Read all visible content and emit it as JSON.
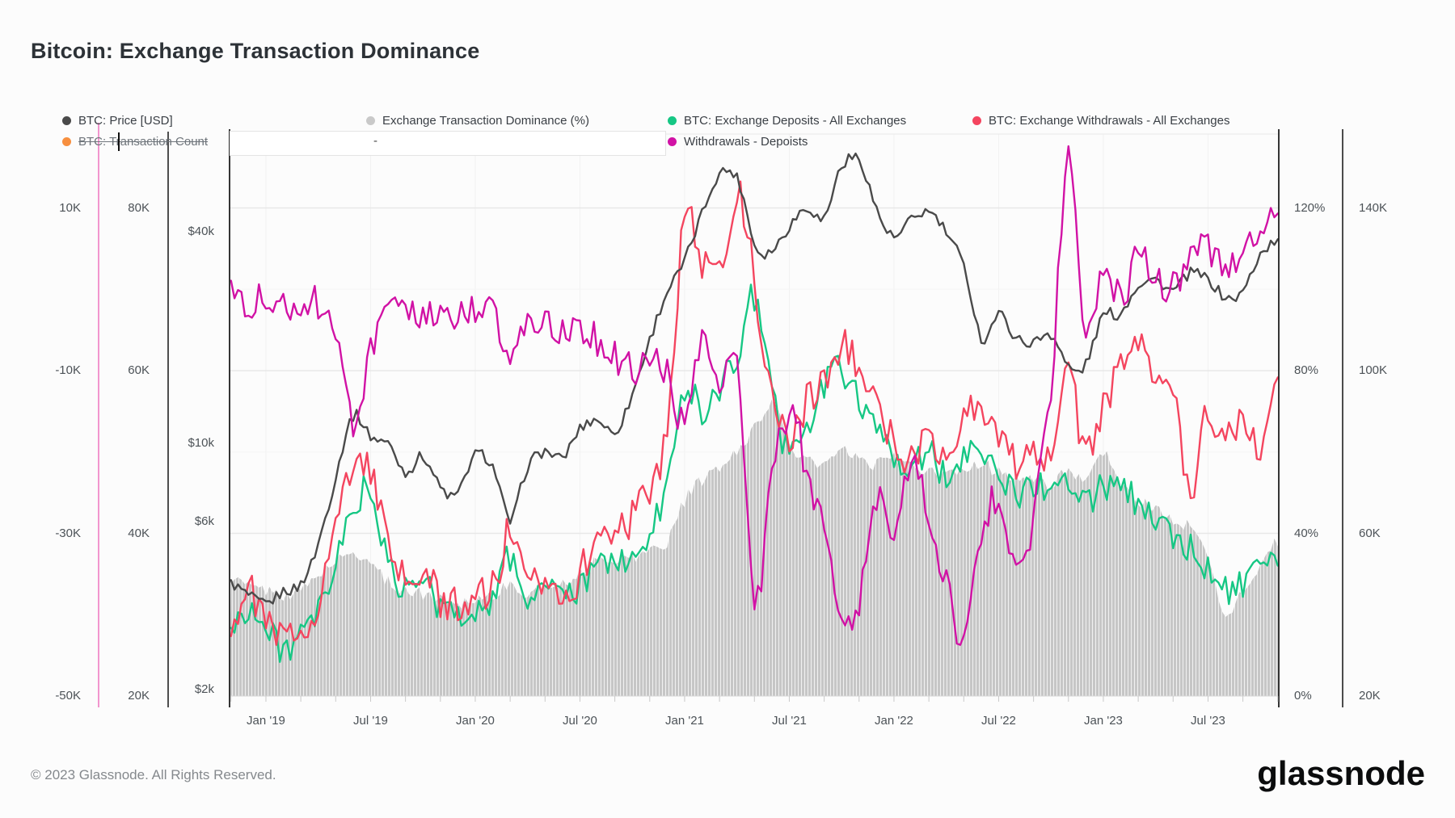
{
  "header": {
    "title": "Bitcoin: Exchange Transaction Dominance"
  },
  "legend": {
    "row1": [
      {
        "id": "btc-price",
        "label": "BTC: Price [USD]",
        "color": "#4a4a4a",
        "enabled": true
      },
      {
        "id": "dominance",
        "label": "Exchange Transaction Dominance (%)",
        "color": "#c9c9c9",
        "enabled": true
      },
      {
        "id": "deposits",
        "label": "BTC: Exchange Deposits - All Exchanges",
        "color": "#16c784",
        "enabled": true
      },
      {
        "id": "withdrawals",
        "label": "BTC: Exchange Withdrawals - All Exchanges",
        "color": "#f4455f",
        "enabled": true
      }
    ],
    "row2": [
      {
        "id": "tx-count",
        "label": "BTC: Transaction Count",
        "color": "#f78f3f",
        "enabled": false
      },
      {
        "id": "net-flow",
        "label": "Withdrawals - Depoists",
        "color": "#d112a5",
        "enabled": true
      }
    ],
    "empty_slot": "-"
  },
  "footer": {
    "copyright": "© 2023 Glassnode. All Rights Reserved.",
    "brand": "glassnode"
  },
  "chart_data": {
    "type": "line",
    "legend_position": "top",
    "grid": "horizontal",
    "x_months": [
      "2018-11",
      "2018-12",
      "2019-01",
      "2019-02",
      "2019-03",
      "2019-04",
      "2019-05",
      "2019-06",
      "2019-07",
      "2019-08",
      "2019-09",
      "2019-10",
      "2019-11",
      "2019-12",
      "2020-01",
      "2020-02",
      "2020-03",
      "2020-04",
      "2020-05",
      "2020-06",
      "2020-07",
      "2020-08",
      "2020-09",
      "2020-10",
      "2020-11",
      "2020-12",
      "2021-01",
      "2021-02",
      "2021-03",
      "2021-04",
      "2021-05",
      "2021-06",
      "2021-07",
      "2021-08",
      "2021-09",
      "2021-10",
      "2021-11",
      "2021-12",
      "2022-01",
      "2022-02",
      "2022-03",
      "2022-04",
      "2022-05",
      "2022-06",
      "2022-07",
      "2022-08",
      "2022-09",
      "2022-10",
      "2022-11",
      "2022-12",
      "2023-01",
      "2023-02",
      "2023-03",
      "2023-04",
      "2023-05",
      "2023-06",
      "2023-07",
      "2023-08",
      "2023-09",
      "2023-10",
      "2023-11"
    ],
    "x_tick_labels": [
      "Jan '19",
      "Jul '19",
      "Jan '20",
      "Jul '20",
      "Jan '21",
      "Jul '21",
      "Jan '22",
      "Jul '22",
      "Jan '23",
      "Jul '23"
    ],
    "axes": {
      "netflow_k": {
        "side": "left",
        "tick_labels": [
          "10K",
          "-10K",
          "-30K",
          "-50K"
        ],
        "ticks_k": [
          10,
          -10,
          -30,
          -50
        ]
      },
      "volume_k": {
        "side": "left",
        "tick_labels": [
          "80K",
          "60K",
          "40K",
          "20K"
        ],
        "ticks_k": [
          80,
          60,
          40,
          20
        ]
      },
      "price_usd": {
        "side": "left",
        "tick_labels": [
          "$40k",
          "$10k",
          "$6k",
          "$2k"
        ],
        "ticks_usd": [
          40000,
          10000,
          6000,
          2000
        ],
        "scale": "log"
      },
      "percent": {
        "side": "right",
        "tick_labels": [
          "120%",
          "80%",
          "40%",
          "0%"
        ],
        "ticks_pct": [
          120,
          80,
          40,
          0
        ]
      },
      "count_k": {
        "side": "right",
        "tick_labels": [
          "140K",
          "100K",
          "60K",
          "20K"
        ],
        "ticks_k": [
          140,
          100,
          60,
          20
        ]
      }
    },
    "series": [
      {
        "name": "BTC: Price [USD]",
        "axis": "price_usd",
        "style": "line",
        "color": "#4a4a4a",
        "values": [
          4000,
          3700,
          3500,
          3800,
          4000,
          5200,
          8000,
          12000,
          10500,
          10000,
          8300,
          9200,
          7500,
          7200,
          9300,
          8600,
          6000,
          8600,
          9500,
          9100,
          11000,
          11700,
          10800,
          13800,
          19700,
          27000,
          33000,
          45000,
          58500,
          57000,
          37000,
          35500,
          41500,
          47000,
          43800,
          61300,
          64000,
          46200,
          38500,
          43200,
          45500,
          39700,
          31800,
          19900,
          23300,
          20000,
          19400,
          20500,
          16500,
          16800,
          23100,
          23500,
          28300,
          29200,
          27200,
          30500,
          29200,
          26000,
          27000,
          34500,
          37500
        ]
      },
      {
        "name": "Exchange Transaction Dominance (%)",
        "axis": "percent",
        "style": "area",
        "color": "#c6c6c6",
        "values": [
          29,
          27,
          26,
          25,
          26,
          30,
          33,
          35,
          33,
          28,
          26,
          25,
          24,
          23,
          24,
          25,
          27,
          25,
          27,
          28,
          30,
          33,
          34,
          34,
          36,
          38,
          48,
          53,
          56,
          60,
          66,
          72,
          62,
          58,
          57,
          60,
          58,
          57,
          59,
          56,
          55,
          54,
          56,
          57,
          55,
          54,
          53,
          52,
          56,
          52,
          60,
          52,
          48,
          46,
          43,
          41,
          34,
          20,
          26,
          32,
          38
        ]
      },
      {
        "name": "BTC: Exchange Deposits - All Exchanges",
        "axis": "volume_k",
        "style": "line",
        "color": "#16c784",
        "values": [
          28,
          31,
          28,
          26,
          27,
          30,
          36,
          43,
          45,
          36,
          33,
          34,
          31,
          30,
          31,
          32,
          37,
          32,
          34,
          32,
          33,
          36,
          37,
          36,
          40,
          46,
          58,
          55,
          58,
          62,
          69,
          57,
          50,
          53,
          58,
          60,
          57,
          52,
          50,
          48,
          50,
          47,
          50,
          51,
          47,
          45,
          46,
          45,
          47,
          44,
          46,
          45,
          44,
          42,
          40,
          38,
          36,
          33,
          34,
          35,
          36
        ]
      },
      {
        "name": "BTC: Exchange Withdrawals - All Exchanges",
        "axis": "volume_k",
        "style": "line",
        "color": "#f4455f",
        "values": [
          29,
          33,
          29,
          27,
          28,
          32,
          41,
          48,
          48,
          38,
          34,
          35,
          32,
          31,
          33,
          33,
          40,
          33,
          35,
          33,
          35,
          39,
          41,
          42,
          46,
          53,
          79,
          73,
          72,
          82,
          71,
          56,
          52,
          56,
          59,
          63,
          60,
          55,
          51,
          49,
          52,
          50,
          54,
          56,
          51,
          49,
          51,
          49,
          59,
          50,
          56,
          60,
          64,
          60,
          57,
          44,
          55,
          51,
          55,
          51,
          58
        ]
      },
      {
        "name": "Withdrawals - Deposits",
        "axis": "netflow_k",
        "style": "line",
        "color": "#d112a5",
        "values": [
          0.5,
          -1.5,
          -1,
          -2,
          -1.5,
          -2,
          -6,
          -16,
          -8,
          -3,
          -3.5,
          -3,
          -4,
          -3.5,
          -2.5,
          -3,
          -9,
          -4,
          -4.5,
          -5,
          -5.5,
          -6,
          -8,
          -10,
          -9,
          -10,
          -17,
          -7,
          -13,
          -10,
          -38,
          -24,
          -15,
          -22,
          -30,
          -42,
          -38,
          -26,
          -30,
          -22,
          -28,
          -36,
          -44,
          -30,
          -26,
          -34,
          -28,
          -12,
          17,
          -6,
          2,
          -1,
          4,
          2,
          0,
          3,
          5,
          2,
          6,
          7,
          9
        ]
      }
    ]
  }
}
